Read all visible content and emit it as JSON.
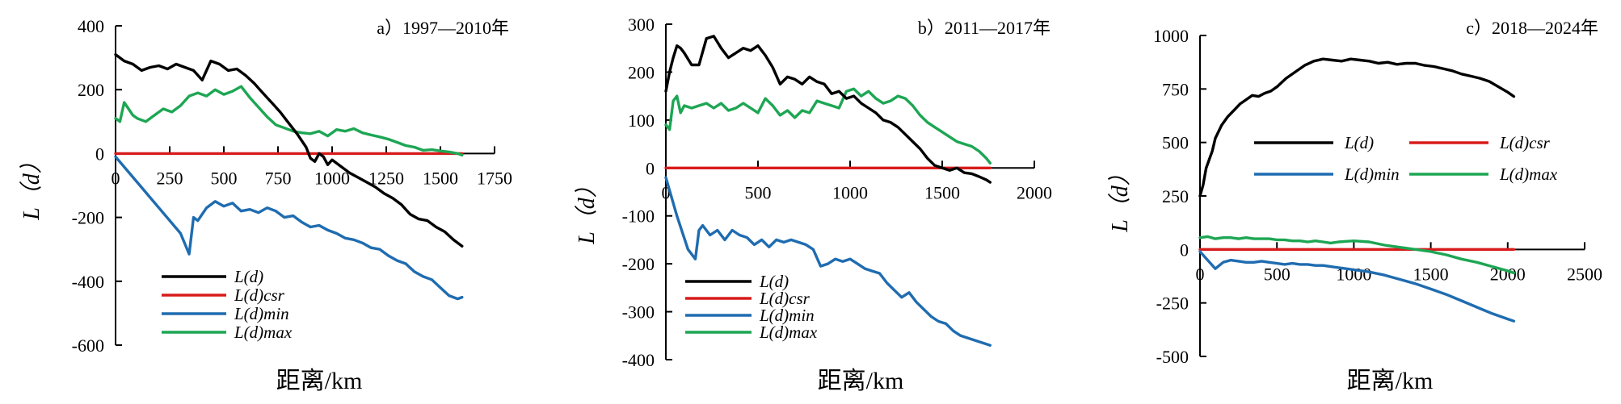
{
  "chart_data": [
    {
      "type": "line",
      "title": "a）1997—2010年",
      "xlabel": "距离/km",
      "ylabel": "L（d）",
      "xlim": [
        0,
        1750
      ],
      "ylim": [
        -600,
        400
      ],
      "xticks": [
        0,
        250,
        500,
        750,
        1000,
        1250,
        1500,
        1750
      ],
      "yticks": [
        -600,
        -400,
        -200,
        0,
        200,
        400
      ],
      "legend": "bottom-left",
      "series": [
        {
          "name": "L(d)",
          "color": "#000000",
          "x": [
            0,
            40,
            80,
            120,
            160,
            200,
            240,
            280,
            320,
            360,
            400,
            440,
            480,
            520,
            560,
            600,
            640,
            680,
            720,
            760,
            800,
            840,
            880,
            900,
            920,
            940,
            960,
            980,
            1000,
            1040,
            1080,
            1120,
            1160,
            1200,
            1240,
            1280,
            1320,
            1360,
            1400,
            1440,
            1480,
            1520,
            1560,
            1600
          ],
          "y": [
            310,
            290,
            280,
            260,
            270,
            275,
            265,
            280,
            270,
            260,
            230,
            290,
            280,
            260,
            265,
            245,
            220,
            190,
            160,
            130,
            95,
            60,
            20,
            -15,
            -25,
            0,
            -10,
            -35,
            -20,
            -40,
            -60,
            -75,
            -90,
            -105,
            -125,
            -140,
            -160,
            -190,
            -205,
            -210,
            -230,
            -245,
            -270,
            -290
          ]
        },
        {
          "name": "L(d)csr",
          "color": "#d81b1b",
          "x": [
            0,
            1600
          ],
          "y": [
            0,
            0
          ]
        },
        {
          "name": "L(d)min",
          "color": "#1f6cb0",
          "x": [
            0,
            100,
            200,
            300,
            340,
            360,
            380,
            420,
            460,
            500,
            540,
            580,
            620,
            660,
            700,
            740,
            780,
            820,
            860,
            900,
            940,
            980,
            1020,
            1060,
            1100,
            1140,
            1180,
            1220,
            1260,
            1300,
            1340,
            1380,
            1420,
            1460,
            1500,
            1540,
            1580,
            1600
          ],
          "y": [
            -10,
            -90,
            -170,
            -250,
            -315,
            -200,
            -210,
            -170,
            -150,
            -165,
            -155,
            -180,
            -175,
            -185,
            -170,
            -180,
            -200,
            -195,
            -215,
            -230,
            -225,
            -240,
            -250,
            -265,
            -270,
            -280,
            -295,
            -300,
            -320,
            -335,
            -345,
            -370,
            -385,
            -395,
            -420,
            -445,
            -455,
            -450
          ]
        },
        {
          "name": "L(d)max",
          "color": "#1da653",
          "x": [
            0,
            20,
            40,
            60,
            80,
            100,
            140,
            180,
            220,
            260,
            300,
            340,
            380,
            420,
            460,
            500,
            540,
            580,
            620,
            660,
            700,
            740,
            780,
            820,
            860,
            900,
            940,
            980,
            1020,
            1060,
            1100,
            1140,
            1180,
            1220,
            1260,
            1300,
            1340,
            1380,
            1420,
            1460,
            1500,
            1540,
            1580,
            1600
          ],
          "y": [
            110,
            100,
            160,
            140,
            120,
            110,
            100,
            120,
            140,
            130,
            150,
            180,
            190,
            180,
            200,
            185,
            195,
            210,
            175,
            145,
            115,
            90,
            80,
            70,
            65,
            62,
            70,
            55,
            75,
            70,
            78,
            65,
            58,
            52,
            45,
            35,
            25,
            20,
            10,
            12,
            8,
            5,
            0,
            -5
          ]
        }
      ]
    },
    {
      "type": "line",
      "title": "b）2011—2017年",
      "xlabel": "距离/km",
      "ylabel": "L（d）",
      "xlim": [
        0,
        2000
      ],
      "ylim": [
        -400,
        300
      ],
      "xticks": [
        0,
        500,
        1000,
        1500,
        2000
      ],
      "yticks": [
        -400,
        -300,
        -200,
        -100,
        0,
        100,
        200,
        300
      ],
      "legend": "bottom-left",
      "series": [
        {
          "name": "L(d)",
          "color": "#000000",
          "x": [
            0,
            20,
            40,
            60,
            80,
            100,
            140,
            180,
            220,
            260,
            300,
            340,
            380,
            420,
            460,
            500,
            540,
            580,
            620,
            660,
            700,
            740,
            780,
            820,
            860,
            900,
            940,
            980,
            1020,
            1060,
            1100,
            1140,
            1180,
            1220,
            1260,
            1300,
            1340,
            1380,
            1420,
            1460,
            1500,
            1540,
            1580,
            1620,
            1660,
            1700,
            1740,
            1760
          ],
          "y": [
            160,
            200,
            230,
            255,
            250,
            240,
            215,
            215,
            270,
            275,
            250,
            230,
            240,
            250,
            245,
            255,
            235,
            210,
            175,
            190,
            185,
            175,
            190,
            180,
            175,
            155,
            160,
            145,
            150,
            135,
            125,
            115,
            100,
            95,
            85,
            70,
            55,
            40,
            20,
            5,
            0,
            -5,
            0,
            -10,
            -12,
            -18,
            -25,
            -30
          ]
        },
        {
          "name": "L(d)csr",
          "color": "#d81b1b",
          "x": [
            0,
            1760
          ],
          "y": [
            0,
            0
          ]
        },
        {
          "name": "L(d)min",
          "color": "#1f6cb0",
          "x": [
            0,
            60,
            120,
            160,
            180,
            200,
            240,
            280,
            320,
            360,
            400,
            440,
            480,
            520,
            560,
            600,
            640,
            680,
            720,
            760,
            800,
            840,
            880,
            920,
            960,
            1000,
            1040,
            1080,
            1120,
            1160,
            1200,
            1240,
            1280,
            1320,
            1360,
            1400,
            1440,
            1480,
            1520,
            1560,
            1600,
            1640,
            1680,
            1720,
            1760
          ],
          "y": [
            -20,
            -100,
            -170,
            -190,
            -130,
            -120,
            -140,
            -130,
            -150,
            -130,
            -140,
            -145,
            -160,
            -150,
            -165,
            -150,
            -155,
            -150,
            -155,
            -160,
            -170,
            -205,
            -200,
            -190,
            -195,
            -190,
            -200,
            -210,
            -215,
            -220,
            -240,
            -255,
            -270,
            -260,
            -280,
            -295,
            -310,
            -320,
            -325,
            -340,
            -350,
            -355,
            -360,
            -365,
            -370
          ]
        },
        {
          "name": "L(d)max",
          "color": "#1da653",
          "x": [
            0,
            20,
            40,
            60,
            80,
            100,
            140,
            180,
            220,
            260,
            300,
            340,
            380,
            420,
            460,
            500,
            540,
            580,
            620,
            660,
            700,
            740,
            780,
            820,
            860,
            900,
            940,
            980,
            1020,
            1060,
            1100,
            1140,
            1180,
            1220,
            1260,
            1300,
            1340,
            1380,
            1420,
            1460,
            1500,
            1540,
            1580,
            1620,
            1660,
            1700,
            1740,
            1760
          ],
          "y": [
            90,
            80,
            140,
            150,
            115,
            130,
            125,
            130,
            135,
            125,
            135,
            120,
            125,
            135,
            125,
            115,
            145,
            130,
            110,
            120,
            105,
            120,
            115,
            140,
            135,
            130,
            125,
            160,
            165,
            150,
            160,
            145,
            135,
            140,
            150,
            145,
            130,
            110,
            95,
            85,
            75,
            65,
            55,
            50,
            45,
            35,
            20,
            10
          ]
        }
      ]
    },
    {
      "type": "line",
      "title": "c）2018—2024年",
      "xlabel": "距离/km",
      "ylabel": "L（d）",
      "xlim": [
        0,
        2500
      ],
      "ylim": [
        -500,
        1000
      ],
      "xticks": [
        0,
        500,
        1000,
        1500,
        2000,
        2500
      ],
      "yticks": [
        -500,
        -250,
        0,
        250,
        500,
        750,
        1000
      ],
      "legend": "middle",
      "series": [
        {
          "name": "L(d)",
          "color": "#000000",
          "x": [
            0,
            20,
            40,
            60,
            80,
            100,
            140,
            180,
            220,
            260,
            300,
            340,
            380,
            420,
            460,
            500,
            560,
            620,
            680,
            740,
            800,
            860,
            920,
            980,
            1040,
            1100,
            1160,
            1220,
            1280,
            1340,
            1400,
            1460,
            1520,
            1580,
            1640,
            1700,
            1760,
            1820,
            1880,
            1940,
            2000,
            2040
          ],
          "y": [
            250,
            300,
            380,
            420,
            460,
            520,
            580,
            620,
            650,
            680,
            700,
            720,
            715,
            730,
            740,
            760,
            800,
            830,
            860,
            880,
            890,
            885,
            880,
            890,
            885,
            880,
            870,
            875,
            865,
            870,
            870,
            860,
            855,
            845,
            835,
            820,
            810,
            800,
            785,
            760,
            735,
            715
          ]
        },
        {
          "name": "L(d)csr",
          "color": "#d81b1b",
          "x": [
            0,
            2040
          ],
          "y": [
            0,
            0
          ]
        },
        {
          "name": "L(d)min",
          "color": "#1f6cb0",
          "x": [
            0,
            50,
            100,
            150,
            200,
            250,
            300,
            350,
            400,
            450,
            500,
            550,
            600,
            650,
            700,
            750,
            800,
            850,
            900,
            950,
            1000,
            1100,
            1200,
            1300,
            1400,
            1500,
            1600,
            1700,
            1800,
            1900,
            2000,
            2040
          ],
          "y": [
            -10,
            -50,
            -90,
            -60,
            -50,
            -55,
            -60,
            -60,
            -55,
            -60,
            -65,
            -70,
            -65,
            -70,
            -70,
            -75,
            -75,
            -80,
            -85,
            -90,
            -95,
            -105,
            -120,
            -140,
            -160,
            -185,
            -210,
            -240,
            -270,
            -300,
            -325,
            -335
          ]
        },
        {
          "name": "L(d)max",
          "color": "#1da653",
          "x": [
            0,
            50,
            100,
            150,
            200,
            250,
            300,
            350,
            400,
            450,
            500,
            550,
            600,
            650,
            700,
            750,
            800,
            850,
            900,
            950,
            1000,
            1100,
            1200,
            1300,
            1400,
            1500,
            1600,
            1700,
            1800,
            1900,
            2000,
            2040
          ],
          "y": [
            55,
            60,
            50,
            55,
            55,
            50,
            55,
            50,
            50,
            50,
            45,
            45,
            40,
            40,
            35,
            40,
            35,
            30,
            35,
            38,
            40,
            35,
            20,
            10,
            0,
            -10,
            -25,
            -45,
            -60,
            -80,
            -100,
            -110
          ]
        }
      ]
    }
  ]
}
